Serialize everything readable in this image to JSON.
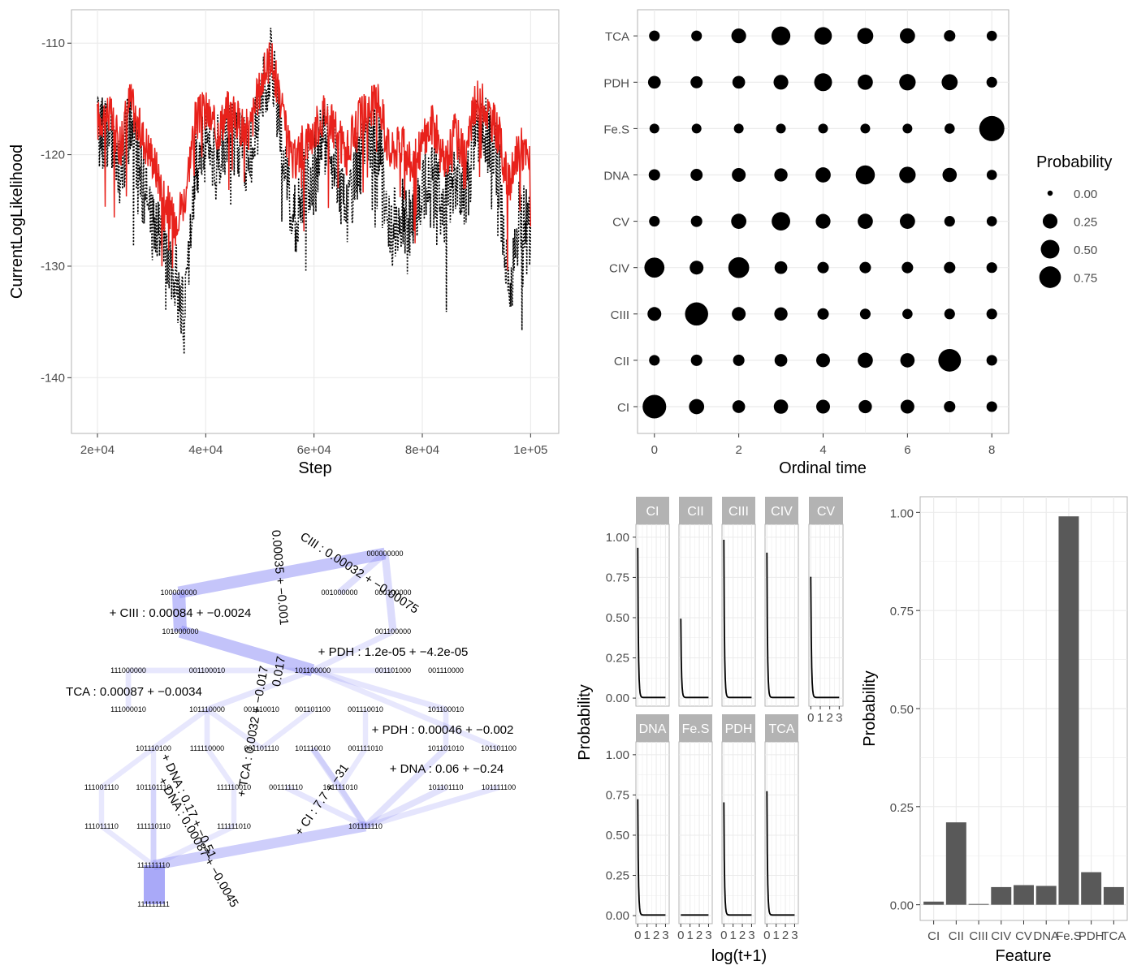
{
  "chart_data": [
    {
      "id": "trace",
      "type": "line",
      "xlabel": "Step",
      "ylabel": "CurrentLogLikelihood",
      "xlim": [
        20000,
        100000
      ],
      "ylim": [
        -145,
        -107
      ],
      "x_ticks": [
        20000,
        40000,
        60000,
        80000,
        100000
      ],
      "x_tick_labels": [
        "2e+04",
        "4e+04",
        "6e+04",
        "8e+04",
        "1e+05"
      ],
      "y_ticks": [
        -140,
        -130,
        -120,
        -110
      ],
      "y_tick_labels": [
        "-140",
        "-130",
        "-120",
        "-110"
      ],
      "series": [
        {
          "style": "solid",
          "color": "#e8211b",
          "x": [
            20000,
            22000,
            24000,
            26000,
            28000,
            30000,
            32000,
            34000,
            36000,
            38000,
            40000,
            42000,
            44000,
            46000,
            48000,
            50000,
            52000,
            54000,
            56000,
            58000,
            60000,
            62000,
            64000,
            66000,
            68000,
            70000,
            72000,
            74000,
            76000,
            78000,
            80000,
            82000,
            84000,
            86000,
            88000,
            90000,
            92000,
            94000,
            96000,
            98000,
            100000
          ],
          "y": [
            -117,
            -116,
            -119,
            -115,
            -118,
            -120,
            -123,
            -126,
            -124,
            -117,
            -116,
            -118,
            -116,
            -117,
            -118,
            -114,
            -111,
            -116,
            -121,
            -119,
            -118,
            -116,
            -118,
            -120,
            -117,
            -116,
            -115,
            -120,
            -119,
            -121,
            -119,
            -117,
            -121,
            -118,
            -120,
            -115,
            -116,
            -118,
            -123,
            -119,
            -121
          ]
        },
        {
          "style": "dotted",
          "color": "#000000",
          "x": [
            20000,
            22000,
            24000,
            26000,
            28000,
            30000,
            32000,
            34000,
            36000,
            38000,
            40000,
            42000,
            44000,
            46000,
            48000,
            50000,
            52000,
            54000,
            56000,
            58000,
            60000,
            62000,
            64000,
            66000,
            68000,
            70000,
            72000,
            74000,
            76000,
            78000,
            80000,
            82000,
            84000,
            86000,
            88000,
            90000,
            92000,
            94000,
            96000,
            98000,
            100000
          ],
          "y": [
            -118,
            -118,
            -122,
            -117,
            -122,
            -126,
            -127,
            -130,
            -135,
            -121,
            -119,
            -120,
            -118,
            -119,
            -120,
            -116,
            -112,
            -118,
            -127,
            -123,
            -121,
            -118,
            -121,
            -125,
            -121,
            -119,
            -119,
            -127,
            -125,
            -127,
            -123,
            -121,
            -125,
            -122,
            -124,
            -117,
            -118,
            -121,
            -133,
            -125,
            -127
          ]
        }
      ]
    },
    {
      "id": "bubble",
      "type": "scatter",
      "xlabel": "Ordinal time",
      "ylabel": "",
      "xlim": [
        -0.4,
        8.4
      ],
      "x_ticks": [
        0,
        2,
        4,
        6,
        8
      ],
      "categories": [
        "CI",
        "CII",
        "CIII",
        "CIV",
        "CV",
        "DNA",
        "Fe.S",
        "PDH",
        "TCA"
      ],
      "legend_title": "Probability",
      "legend_values": [
        0.0,
        0.25,
        0.5,
        0.75
      ],
      "legend_labels": [
        "0.00",
        "0.25",
        "0.50",
        "0.75"
      ],
      "legend_position": "right",
      "values": {
        "CI": [
          0.78,
          0.22,
          0.12,
          0.18,
          0.16,
          0.14,
          0.16,
          0.08,
          0.06
        ],
        "CII": [
          0.06,
          0.08,
          0.08,
          0.12,
          0.16,
          0.22,
          0.18,
          0.7,
          0.06
        ],
        "CIII": [
          0.16,
          0.74,
          0.16,
          0.14,
          0.08,
          0.06,
          0.05,
          0.06,
          0.06
        ],
        "CIV": [
          0.5,
          0.16,
          0.56,
          0.12,
          0.08,
          0.08,
          0.08,
          0.08,
          0.06
        ],
        "CV": [
          0.06,
          0.08,
          0.22,
          0.4,
          0.2,
          0.22,
          0.22,
          0.06,
          0.05
        ],
        "DNA": [
          0.08,
          0.1,
          0.16,
          0.14,
          0.22,
          0.44,
          0.28,
          0.18,
          0.05
        ],
        "Fe.S": [
          0.04,
          0.04,
          0.04,
          0.04,
          0.04,
          0.04,
          0.04,
          0.05,
          0.92
        ],
        "PDH": [
          0.12,
          0.1,
          0.12,
          0.2,
          0.36,
          0.22,
          0.28,
          0.26,
          0.06
        ],
        "TCA": [
          0.06,
          0.06,
          0.2,
          0.42,
          0.34,
          0.26,
          0.22,
          0.08,
          0.05
        ]
      }
    },
    {
      "id": "hypercube",
      "type": "diagram",
      "nodes": [
        {
          "id": "000000000",
          "label": "000000000"
        },
        {
          "id": "100000000",
          "label": "100000000"
        },
        {
          "id": "001000000",
          "label": "001000000"
        },
        {
          "id": "000100000",
          "label": "000100000"
        },
        {
          "id": "101000000",
          "label": "101000000"
        },
        {
          "id": "001100000",
          "label": "001100000"
        },
        {
          "id": "111000000",
          "label": "111000000"
        },
        {
          "id": "001100010",
          "label": "001100010"
        },
        {
          "id": "101100000",
          "label": "101100000"
        },
        {
          "id": "001101000",
          "label": "001101000"
        },
        {
          "id": "001110000",
          "label": "001110000"
        },
        {
          "id": "111000010",
          "label": "111000010"
        },
        {
          "id": "101110000",
          "label": "101110000"
        },
        {
          "id": "001110010",
          "label": "001110010"
        },
        {
          "id": "001101100",
          "label": "001101100"
        },
        {
          "id": "001110010b",
          "label": "001110010"
        },
        {
          "id": "101100010",
          "label": "101100010"
        },
        {
          "id": "101110100",
          "label": "101110100"
        },
        {
          "id": "111110000",
          "label": "111110000"
        },
        {
          "id": "001101110",
          "label": "001101110"
        },
        {
          "id": "101110010",
          "label": "101110010"
        },
        {
          "id": "001111010",
          "label": "001111010"
        },
        {
          "id": "101101010",
          "label": "101101010"
        },
        {
          "id": "101101100",
          "label": "101101100"
        },
        {
          "id": "111001110",
          "label": "111001110"
        },
        {
          "id": "101101110",
          "label": "101101110"
        },
        {
          "id": "111110010",
          "label": "111110010"
        },
        {
          "id": "001111110",
          "label": "001111110"
        },
        {
          "id": "101111010",
          "label": "101111010"
        },
        {
          "id": "101101110b",
          "label": "101101110"
        },
        {
          "id": "101111100",
          "label": "101111100"
        },
        {
          "id": "111011110",
          "label": "111011110"
        },
        {
          "id": "111110110",
          "label": "111110110"
        },
        {
          "id": "111111010",
          "label": "111111010"
        },
        {
          "id": "101111110",
          "label": "101111110"
        },
        {
          "id": "111111110",
          "label": "111111110"
        },
        {
          "id": "111111111",
          "label": "111111111"
        }
      ],
      "edge_labels": [
        "CIII : 0.00032 + −0.00075",
        "0.00035 + −0.001",
        "+ CIII : 0.00084 + −0.0024",
        "+ PDH : 1.2e-05 + −4.2e-05",
        "TCA : 0.00087 + −0.0034",
        "0.017",
        "+ TCA : 0.0032 + −0.017",
        "+ PDH : 0.00046 + −0.002",
        "+ DNA : 0.06 + −0.24",
        "+ DNA : 0.17 + −0.51",
        "+ DNA : 0.00087 + −0.0045",
        "+ CI : 7.7 + −31"
      ]
    },
    {
      "id": "facets",
      "type": "line",
      "xlabel": "log(t+1)",
      "ylabel": "Probability",
      "xlim": [
        -0.2,
        3.4
      ],
      "ylim": [
        -0.05,
        1.08
      ],
      "x_ticks": [
        0,
        1,
        2,
        3
      ],
      "y_ticks": [
        0,
        0.25,
        0.5,
        0.75,
        1.0
      ],
      "y_tick_labels": [
        "0.00",
        "0.25",
        "0.50",
        "0.75",
        "1.00"
      ],
      "panels": [
        {
          "name": "CI",
          "start": 0.93
        },
        {
          "name": "CII",
          "start": 0.49
        },
        {
          "name": "CIII",
          "start": 0.98
        },
        {
          "name": "CIV",
          "start": 0.9
        },
        {
          "name": "CV",
          "start": 0.75
        },
        {
          "name": "DNA",
          "start": 0.72
        },
        {
          "name": "Fe.S",
          "start": 0.0
        },
        {
          "name": "PDH",
          "start": 0.7
        },
        {
          "name": "TCA",
          "start": 0.77
        }
      ]
    },
    {
      "id": "bars",
      "type": "bar",
      "xlabel": "Feature",
      "ylabel": "Probability",
      "ylim": [
        -0.04,
        1.04
      ],
      "y_ticks": [
        0,
        0.25,
        0.5,
        0.75,
        1.0
      ],
      "y_tick_labels": [
        "0.00",
        "0.25",
        "0.50",
        "0.75",
        "1.00"
      ],
      "categories": [
        "CI",
        "CII",
        "CIII",
        "CIV",
        "CV",
        "DNA",
        "Fe.S",
        "PDH",
        "TCA"
      ],
      "values": [
        0.008,
        0.21,
        0.002,
        0.045,
        0.05,
        0.048,
        0.99,
        0.083,
        0.045
      ]
    }
  ]
}
